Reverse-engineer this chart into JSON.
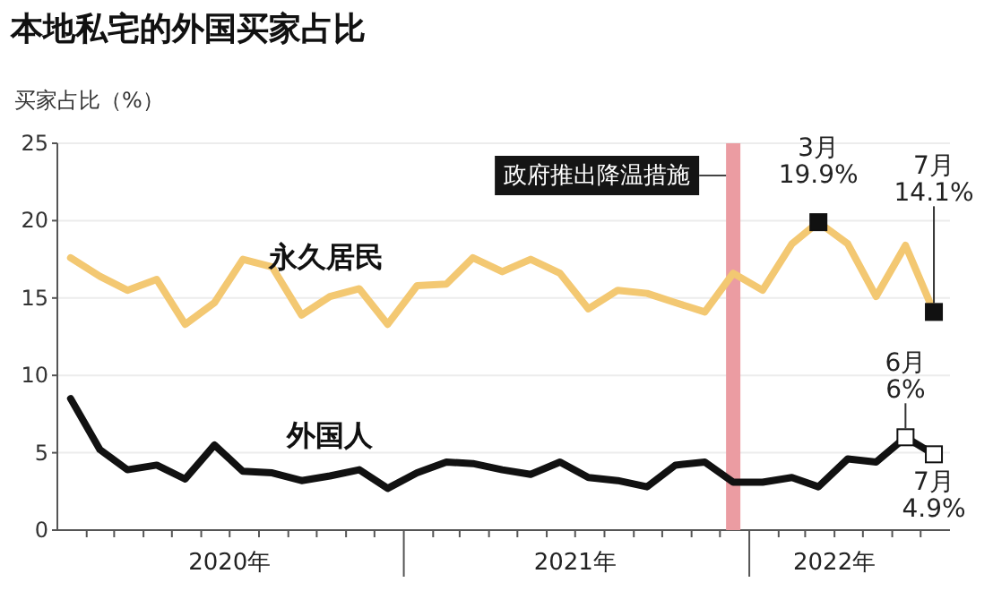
{
  "chart_data": {
    "type": "line",
    "title": "本地私宅的外国买家占比",
    "ylabel": "买家占比（%）",
    "x": [
      "2020-01-15",
      "2020-02-15",
      "2020-03-15",
      "2020-04-15",
      "2020-05-15",
      "2020-06-15",
      "2020-07-15",
      "2020-08-15",
      "2020-09-15",
      "2020-10-15",
      "2020-11-15",
      "2020-12-15",
      "2021-01-15",
      "2021-02-15",
      "2021-03-15",
      "2021-04-15",
      "2021-05-15",
      "2021-06-15",
      "2021-07-15",
      "2021-08-15",
      "2021-09-15",
      "2021-10-15",
      "2021-11-15",
      "2021-12-15",
      "2022-01-15",
      "2022-02-15",
      "2022-03-15",
      "2022-04-15",
      "2022-05-15",
      "2022-06-15",
      "2022-07-15"
    ],
    "series": [
      {
        "name": "永久居民",
        "color": "#f3c872",
        "values": [
          17.6,
          16.4,
          15.5,
          16.2,
          13.3,
          14.7,
          17.5,
          17.0,
          13.9,
          15.1,
          15.6,
          13.3,
          15.8,
          15.9,
          17.6,
          16.7,
          17.5,
          16.6,
          14.3,
          15.5,
          15.3,
          14.7,
          14.1,
          16.6,
          15.5,
          18.5,
          19.9,
          18.5,
          15.1,
          18.4,
          14.1
        ]
      },
      {
        "name": "外国人",
        "color": "#111111",
        "values": [
          8.5,
          5.2,
          3.9,
          4.2,
          3.3,
          5.5,
          3.8,
          3.7,
          3.2,
          3.5,
          3.9,
          2.7,
          3.7,
          4.4,
          4.3,
          3.9,
          3.6,
          4.4,
          3.4,
          3.2,
          2.8,
          4.2,
          4.4,
          3.1,
          3.1,
          3.4,
          2.8,
          4.6,
          4.4,
          6.0,
          4.9
        ]
      }
    ],
    "xlim": [
      "2020-01-01",
      "2022-08-01"
    ],
    "xticks": [
      {
        "value": "2020-02-01",
        "label": null
      },
      {
        "value": "2020-03-01",
        "label": null
      },
      {
        "value": "2020-04-01",
        "label": null
      },
      {
        "value": "2020-05-01",
        "label": null
      },
      {
        "value": "2020-06-01",
        "label": null
      },
      {
        "value": "2020-07-01",
        "label": "2020年"
      },
      {
        "value": "2020-08-01",
        "label": null
      },
      {
        "value": "2020-09-01",
        "label": null
      },
      {
        "value": "2020-10-01",
        "label": null
      },
      {
        "value": "2020-11-01",
        "label": null
      },
      {
        "value": "2020-12-01",
        "label": null
      },
      {
        "value": "2021-01-01",
        "label": null
      },
      {
        "value": "2021-02-01",
        "label": null
      },
      {
        "value": "2021-03-01",
        "label": null
      },
      {
        "value": "2021-04-01",
        "label": null
      },
      {
        "value": "2021-05-01",
        "label": null
      },
      {
        "value": "2021-06-01",
        "label": null
      },
      {
        "value": "2021-07-01",
        "label": "2021年"
      },
      {
        "value": "2021-08-01",
        "label": null
      },
      {
        "value": "2021-09-01",
        "label": null
      },
      {
        "value": "2021-10-01",
        "label": null
      },
      {
        "value": "2021-11-01",
        "label": null
      },
      {
        "value": "2021-12-01",
        "label": null
      },
      {
        "value": "2022-01-01",
        "label": null
      },
      {
        "value": "2022-02-01",
        "label": null
      },
      {
        "value": "2022-03-01",
        "label": null
      },
      {
        "value": "2022-04-01",
        "label": "2022年"
      },
      {
        "value": "2022-05-01",
        "label": null
      },
      {
        "value": "2022-06-01",
        "label": null
      },
      {
        "value": "2022-07-01",
        "label": null
      }
    ],
    "ylim": [
      0,
      25
    ],
    "yticks": [
      0,
      5,
      10,
      15,
      20,
      25
    ],
    "grid": "y",
    "ref_lines": [
      {
        "axis": "x",
        "value": "2021-12-15",
        "label": "政府推出降温措施",
        "color": "#eb9ca2"
      }
    ],
    "annotations": [
      {
        "text": "3月\n19.9%",
        "x": "2022-03-15",
        "y": 19.9
      },
      {
        "text": "7月\n14.1%",
        "x": "2022-07-15",
        "y": 14.1
      },
      {
        "text": "6月\n6%",
        "x": "2022-06-15",
        "y": 6
      },
      {
        "text": "7月\n4.9%",
        "x": "2022-07-15",
        "y": 4.9
      }
    ]
  }
}
